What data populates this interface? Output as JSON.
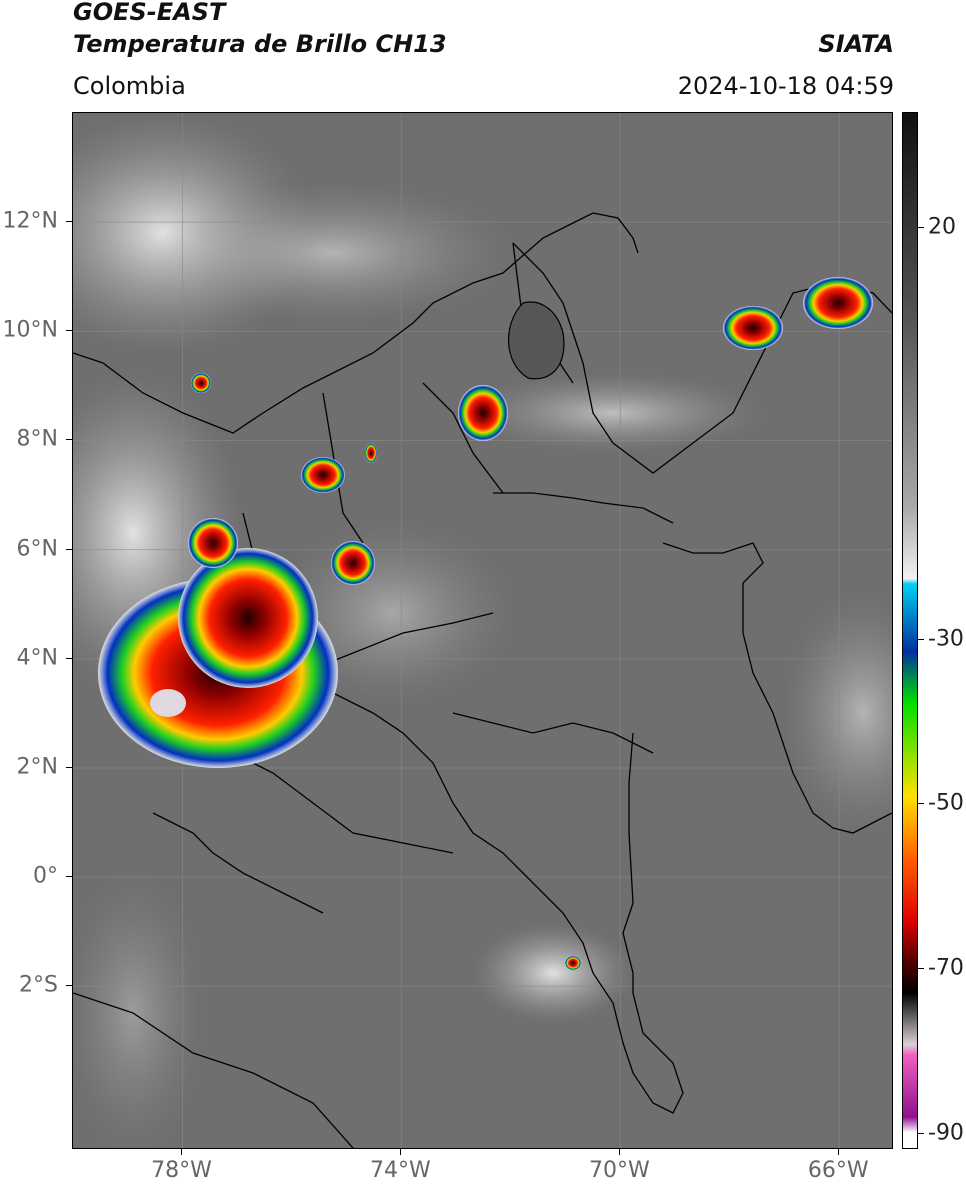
{
  "header": {
    "title_line1": "GOES-EAST",
    "title_line2": "Temperatura de Brillo CH13",
    "brand": "SIATA",
    "region": "Colombia",
    "datetime": "2024-10-18 04:59"
  },
  "map": {
    "lon_range": [
      -80,
      -65
    ],
    "lat_range": [
      -5,
      14
    ],
    "lat_labels": [
      {
        "lat": 12,
        "label": "12°N"
      },
      {
        "lat": 10,
        "label": "10°N"
      },
      {
        "lat": 8,
        "label": "8°N"
      },
      {
        "lat": 6,
        "label": "6°N"
      },
      {
        "lat": 4,
        "label": "4°N"
      },
      {
        "lat": 2,
        "label": "2°N"
      },
      {
        "lat": 0,
        "label": "0°"
      },
      {
        "lat": -2,
        "label": "2°S"
      }
    ],
    "lon_labels": [
      {
        "lon": -78,
        "label": "78°W"
      },
      {
        "lon": -74,
        "label": "74°W"
      },
      {
        "lon": -70,
        "label": "70°W"
      },
      {
        "lon": -66,
        "label": "66°W"
      }
    ],
    "background_color": "#6f6f6f",
    "cold_cloud_colors": [
      "#0000a0",
      "#00d000",
      "#ffff00",
      "#ff0000",
      "#800000",
      "#200000"
    ]
  },
  "colorbar": {
    "range": [
      -92,
      34
    ],
    "ticks": [
      {
        "value": 20,
        "label": "20"
      },
      {
        "value": -30,
        "label": "-30"
      },
      {
        "value": -50,
        "label": "-50"
      },
      {
        "value": -70,
        "label": "-70"
      },
      {
        "value": -90,
        "label": "-90"
      }
    ]
  }
}
